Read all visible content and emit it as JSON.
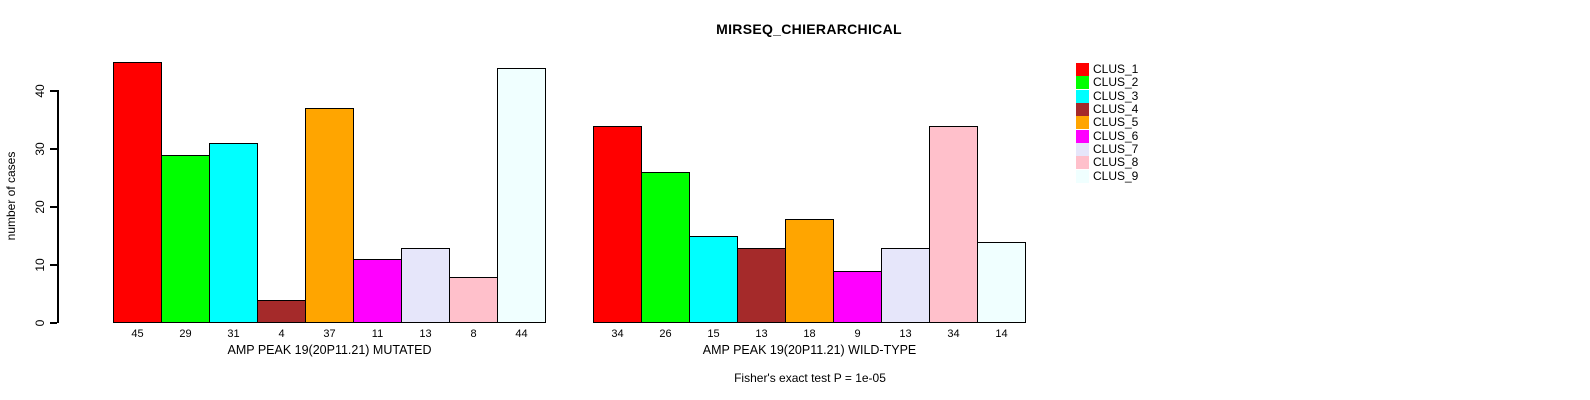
{
  "figure": {
    "title": "MIRSEQ_CHIERARCHICAL",
    "background": "#ffffff"
  },
  "chart_data": {
    "type": "bar",
    "title": "MIRSEQ_CHIERARCHICAL",
    "ylabel": "number of cases",
    "ylim": [
      0,
      45
    ],
    "yticks": [
      0,
      10,
      20,
      30,
      40
    ],
    "grid": false,
    "legend_position": "right",
    "categories": [
      "CLUS_1",
      "CLUS_2",
      "CLUS_3",
      "CLUS_4",
      "CLUS_5",
      "CLUS_6",
      "CLUS_7",
      "CLUS_8",
      "CLUS_9"
    ],
    "bar_colors": [
      "#FF0000",
      "#00FF00",
      "#00FFFF",
      "#A52A2A",
      "#FFA500",
      "#FF00FF",
      "#E6E6FA",
      "#FFC0CB",
      "#F0FFFF"
    ],
    "panels": [
      {
        "xlabel": "AMP PEAK 19(20P11.21) MUTATED",
        "values": [
          45,
          29,
          31,
          4,
          37,
          11,
          13,
          8,
          44
        ]
      },
      {
        "xlabel": "AMP PEAK 19(20P11.21) WILD-TYPE",
        "values": [
          34,
          26,
          15,
          13,
          18,
          9,
          13,
          34,
          14
        ]
      }
    ],
    "annotation": "Fisher's exact test P = 1e-05"
  },
  "legend": {
    "items": [
      {
        "label": "CLUS_1",
        "color": "#FF0000"
      },
      {
        "label": "CLUS_2",
        "color": "#00FF00"
      },
      {
        "label": "CLUS_3",
        "color": "#00FFFF"
      },
      {
        "label": "CLUS_4",
        "color": "#A52A2A"
      },
      {
        "label": "CLUS_5",
        "color": "#FFA500"
      },
      {
        "label": "CLUS_6",
        "color": "#FF00FF"
      },
      {
        "label": "CLUS_7",
        "color": "#E6E6FA"
      },
      {
        "label": "CLUS_8",
        "color": "#FFC0CB"
      },
      {
        "label": "CLUS_9",
        "color": "#F0FFFF"
      }
    ]
  }
}
